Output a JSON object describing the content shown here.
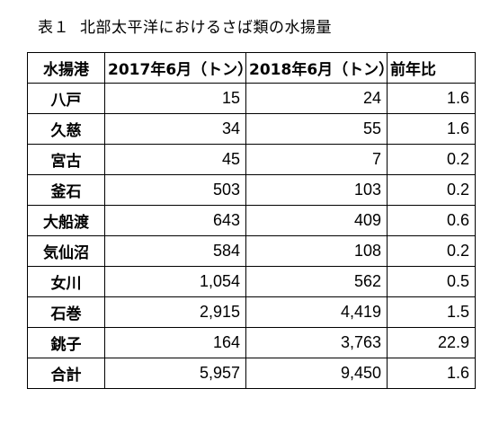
{
  "caption": {
    "number": "表１",
    "text": "北部太平洋におけるさば類の水揚量"
  },
  "table": {
    "headers": [
      "水揚港",
      "2017年6月（トン）",
      "2018年6月（トン）",
      "前年比"
    ],
    "rows": [
      {
        "port": "八戸",
        "y2017": "15",
        "y2018": "24",
        "ratio": "1.6"
      },
      {
        "port": "久慈",
        "y2017": "34",
        "y2018": "55",
        "ratio": "1.6"
      },
      {
        "port": "宮古",
        "y2017": "45",
        "y2018": "7",
        "ratio": "0.2"
      },
      {
        "port": "釜石",
        "y2017": "503",
        "y2018": "103",
        "ratio": "0.2"
      },
      {
        "port": "大船渡",
        "y2017": "643",
        "y2018": "409",
        "ratio": "0.6"
      },
      {
        "port": "気仙沼",
        "y2017": "584",
        "y2018": "108",
        "ratio": "0.2"
      },
      {
        "port": "女川",
        "y2017": "1,054",
        "y2018": "562",
        "ratio": "0.5"
      },
      {
        "port": "石巻",
        "y2017": "2,915",
        "y2018": "4,419",
        "ratio": "1.5"
      },
      {
        "port": "銚子",
        "y2017": "164",
        "y2018": "3,763",
        "ratio": "22.9"
      },
      {
        "port": "合計",
        "y2017": "5,957",
        "y2018": "9,450",
        "ratio": "1.6"
      }
    ]
  }
}
